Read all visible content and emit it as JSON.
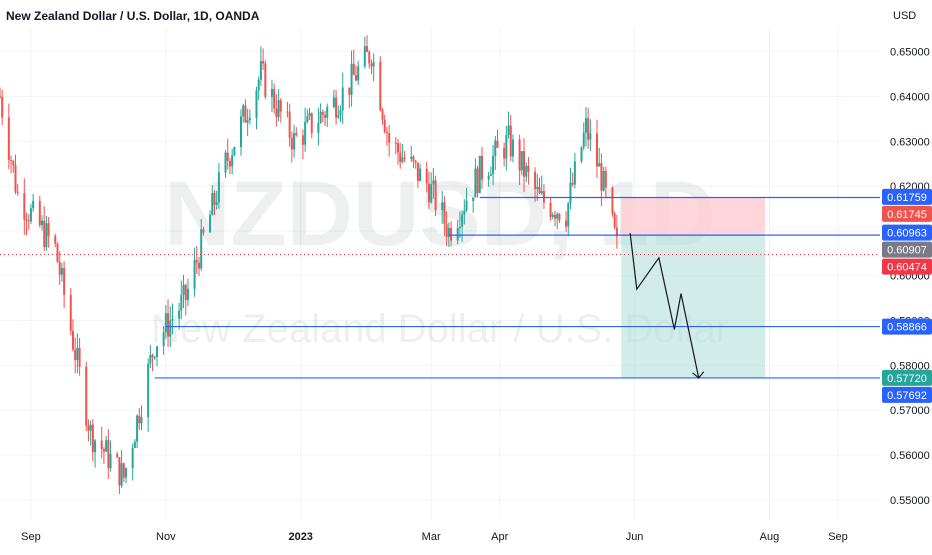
{
  "header": {
    "title": "New Zealand Dollar / U.S. Dollar, 1D, OANDA",
    "currency": "USD"
  },
  "watermark": {
    "symbol": "NZDUSD, 1D",
    "name": "New Zealand Dollar / U.S. Dollar"
  },
  "colors": {
    "up": "#26a69a",
    "down": "#ef5350",
    "line": "#2962ff",
    "target_zone": "#b2dfdb",
    "stop_zone": "#ffcdd2",
    "current_price": "#f23645",
    "grey_badge": "#787b86"
  },
  "chart_data": {
    "type": "candlestick",
    "title": "New Zealand Dollar / U.S. Dollar, 1D, OANDA",
    "ylabel": "USD",
    "ylim": [
      0.5455,
      0.6555
    ],
    "xlim": [
      "2022-08-18",
      "2023-09-20"
    ],
    "x_ticks": [
      {
        "label": "Sep",
        "date": "2022-09-01"
      },
      {
        "label": "Nov",
        "date": "2022-11-01"
      },
      {
        "label": "2023",
        "date": "2023-01-01"
      },
      {
        "label": "Mar",
        "date": "2023-03-01"
      },
      {
        "label": "Apr",
        "date": "2023-04-01"
      },
      {
        "label": "Jun",
        "date": "2023-06-01"
      },
      {
        "label": "Aug",
        "date": "2023-08-01"
      },
      {
        "label": "Sep",
        "date": "2023-09-01"
      }
    ],
    "y_ticks": [
      "0.55000",
      "0.56000",
      "0.57000",
      "0.58000",
      "0.59000",
      "0.60000",
      "0.61000",
      "0.62000",
      "0.63000",
      "0.64000",
      "0.65000"
    ],
    "y_tick_values": [
      0.55,
      0.56,
      0.57,
      0.58,
      0.59,
      0.6,
      0.61,
      0.62,
      0.63,
      0.64,
      0.65
    ],
    "price_path": [
      {
        "date": "2022-08-18",
        "price": 0.64
      },
      {
        "date": "2022-08-26",
        "price": 0.618
      },
      {
        "date": "2022-09-12",
        "price": 0.606
      },
      {
        "date": "2022-09-28",
        "price": 0.565
      },
      {
        "date": "2022-10-13",
        "price": 0.555
      },
      {
        "date": "2022-10-27",
        "price": 0.585
      },
      {
        "date": "2022-11-10",
        "price": 0.595
      },
      {
        "date": "2022-11-28",
        "price": 0.625
      },
      {
        "date": "2022-12-14",
        "price": 0.645
      },
      {
        "date": "2022-12-29",
        "price": 0.63
      },
      {
        "date": "2023-01-19",
        "price": 0.64
      },
      {
        "date": "2023-02-02",
        "price": 0.65
      },
      {
        "date": "2023-02-10",
        "price": 0.63
      },
      {
        "date": "2023-02-28",
        "price": 0.62
      },
      {
        "date": "2023-03-09",
        "price": 0.61
      },
      {
        "date": "2023-03-23",
        "price": 0.623
      },
      {
        "date": "2023-04-05",
        "price": 0.63
      },
      {
        "date": "2023-04-19",
        "price": 0.617
      },
      {
        "date": "2023-05-01",
        "price": 0.614
      },
      {
        "date": "2023-05-10",
        "price": 0.633
      },
      {
        "date": "2023-05-17",
        "price": 0.622
      },
      {
        "date": "2023-05-25",
        "price": 0.604
      }
    ],
    "levels": [
      {
        "price": 0.61745,
        "label": "0.61745",
        "badge": "down"
      },
      {
        "price": 0.60907,
        "label": "0.60907",
        "badge": "grey"
      },
      {
        "price": 0.58866,
        "label": "0.58866",
        "badge": "line"
      },
      {
        "price": 0.5772,
        "label": "0.57720",
        "badge": "up"
      }
    ],
    "price_badges": [
      {
        "price": 0.61759,
        "label": "0.61759",
        "badge": "line"
      },
      {
        "price": 0.60963,
        "label": "0.60963",
        "badge": "line"
      },
      {
        "price": 0.57692,
        "label": "0.57692",
        "badge": "line"
      }
    ],
    "current_price": {
      "price": 0.60474,
      "label": "0.60474"
    },
    "position": {
      "entry": 0.60907,
      "stop": 0.61745,
      "target": 0.5772,
      "start": "2023-05-26",
      "end": "2023-07-30"
    },
    "projection_path": [
      {
        "date": "2023-05-30",
        "price": 0.6095
      },
      {
        "date": "2023-06-02",
        "price": 0.597
      },
      {
        "date": "2023-06-12",
        "price": 0.604
      },
      {
        "date": "2023-06-19",
        "price": 0.588
      },
      {
        "date": "2023-06-22",
        "price": 0.596
      },
      {
        "date": "2023-06-30",
        "price": 0.5772
      }
    ]
  }
}
